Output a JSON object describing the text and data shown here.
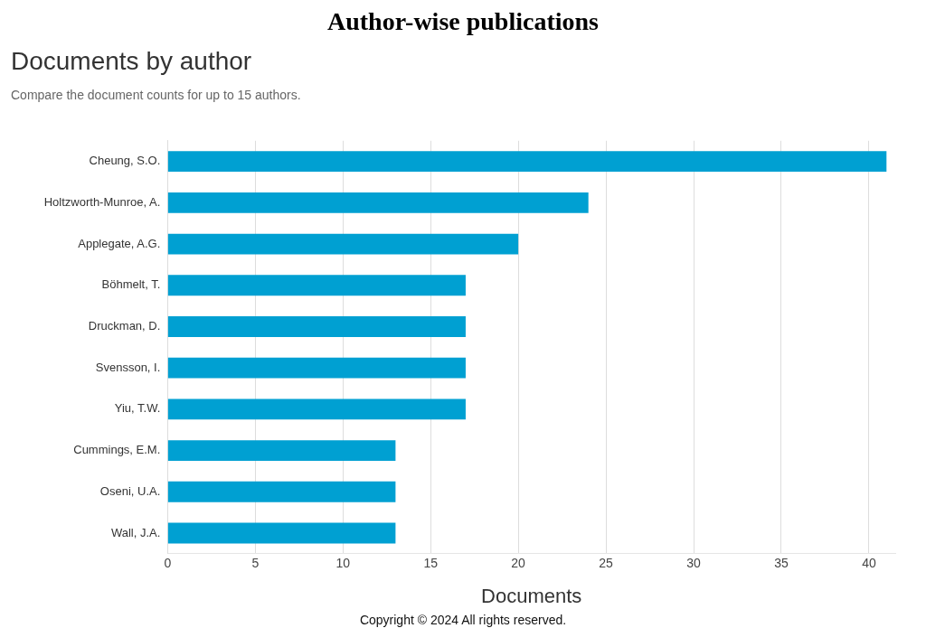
{
  "chart_data": {
    "type": "bar",
    "orientation": "horizontal",
    "title": "Author-wise publications",
    "subtitle": "Documents by author",
    "annotations": [
      "Compare the document counts for up to 15 authors.",
      "Copyright © 2024 All rights reserved."
    ],
    "categories": [
      "Cheung, S.O.",
      "Holtzworth-Munroe, A.",
      "Applegate, A.G.",
      "Böhmelt, T.",
      "Druckman, D.",
      "Svensson, I.",
      "Yiu, T.W.",
      "Cummings, E.M.",
      "Oseni, U.A.",
      "Wall, J.A."
    ],
    "values": [
      41,
      24,
      20,
      17,
      17,
      17,
      17,
      13,
      13,
      13
    ],
    "color": "#00a0d2",
    "xlabel": "Documents",
    "xlim": [
      0,
      41.5
    ],
    "xticks": [
      0,
      5,
      10,
      15,
      20,
      25,
      30,
      35,
      40
    ],
    "grid": "x"
  }
}
